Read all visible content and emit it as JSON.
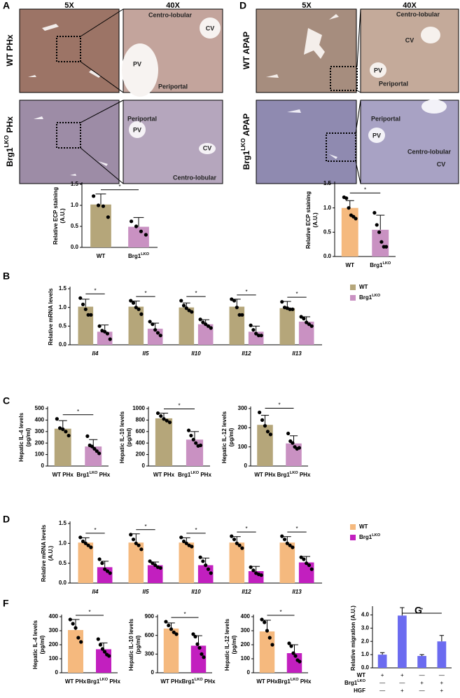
{
  "panel_labels": [
    "A",
    "D",
    "B",
    "C",
    "D",
    "F",
    "G"
  ],
  "images": {
    "A": {
      "columns": [
        "5X",
        "40X"
      ],
      "rows": [
        "WT PHx",
        "Brg1LKO PHx"
      ],
      "annotations": [
        [
          "Centro-lobular",
          "CV",
          "PV",
          "Periportal"
        ],
        [
          "Periportal",
          "PV",
          "CV",
          "Centro-lobular"
        ]
      ]
    },
    "D": {
      "columns": [
        "5X",
        "40X"
      ],
      "rows": [
        "WT APAP",
        "Brg1LKO APAP"
      ],
      "annotations": [
        [
          "Centro-lobular",
          "CV",
          "PV",
          "Periportal"
        ],
        [
          "Periportal",
          "PV",
          "Centro-lobular",
          "CV"
        ]
      ]
    }
  },
  "chart_data": [
    {
      "type": "bar",
      "y_label": [
        "Relative ECP staining",
        "(A.U.)"
      ],
      "categories": [
        "WT",
        "Brg1LKO"
      ],
      "values": [
        1.02,
        0.49
      ],
      "errors": [
        0.25,
        0.22
      ],
      "points": [
        [
          1.22,
          1.0,
          0.98,
          0.72
        ],
        [
          0.62,
          0.5,
          0.38,
          0.3
        ]
      ],
      "colors": [
        "#b5a67a",
        "#c991c2"
      ],
      "ylim": [
        0,
        1.5
      ],
      "yticks": [
        {
          "value": 0,
          "label": "0.0"
        },
        {
          "value": 0.5,
          "label": "0.5"
        },
        {
          "value": 1,
          "label": "1.0"
        },
        {
          "value": 1.5,
          "label": "1.5"
        }
      ],
      "significance": "*"
    },
    {
      "type": "bar",
      "y_label": [
        "Relative ECP staining",
        "(A.U.)"
      ],
      "categories": [
        "WT",
        "Brg1LKO"
      ],
      "values": [
        1.0,
        0.55
      ],
      "errors": [
        0.15,
        0.3
      ],
      "points": [
        [
          1.22,
          1.2,
          1.0,
          0.85,
          0.82,
          0.78
        ],
        [
          0.9,
          0.65,
          0.5,
          0.3,
          0.2,
          0.2
        ]
      ],
      "colors": [
        "#f5b97e",
        "#c991c2"
      ],
      "ylim": [
        0,
        1.5
      ],
      "yticks": [
        {
          "value": 0,
          "label": "0.0"
        },
        {
          "value": 0.5,
          "label": "0.5"
        },
        {
          "value": 1,
          "label": "1.0"
        },
        {
          "value": 1.5,
          "label": "1.5"
        }
      ],
      "significance": "*"
    },
    {
      "type": "grouped_bar",
      "y_label": [
        "Relative mRNA levels"
      ],
      "categories": [
        "Il4",
        "Il5",
        "Il10",
        "Il12",
        "Il13"
      ],
      "italic_categories": true,
      "series": [
        {
          "name": "WT",
          "color": "#b5a67a",
          "values": [
            1.02,
            1.02,
            1.0,
            1.02,
            0.98
          ],
          "errors": [
            0.2,
            0.15,
            0.12,
            0.2,
            0.18
          ],
          "points": [
            [
              1.25,
              1.08,
              0.95,
              0.8,
              0.8
            ],
            [
              1.18,
              1.12,
              1.0,
              0.95,
              0.82
            ],
            [
              1.18,
              1.05,
              0.98,
              0.92,
              0.88
            ],
            [
              1.22,
              1.18,
              1.0,
              0.8,
              0.8
            ],
            [
              1.15,
              1.0,
              0.98,
              0.95,
              0.95
            ]
          ]
        },
        {
          "name": "Brg1LKO",
          "color": "#c991c2",
          "values": [
            0.35,
            0.43,
            0.55,
            0.35,
            0.62
          ],
          "errors": [
            0.18,
            0.15,
            0.12,
            0.15,
            0.13
          ],
          "points": [
            [
              0.5,
              0.38,
              0.35,
              0.3,
              0.15
            ],
            [
              0.62,
              0.55,
              0.4,
              0.32,
              0.25
            ],
            [
              0.68,
              0.6,
              0.55,
              0.5,
              0.45
            ],
            [
              0.52,
              0.4,
              0.3,
              0.25,
              0.25
            ],
            [
              0.75,
              0.7,
              0.6,
              0.55,
              0.5
            ]
          ]
        }
      ],
      "ylim": [
        0,
        1.5
      ],
      "yticks": [
        {
          "value": 0,
          "label": "0.0"
        },
        {
          "value": 0.5,
          "label": "0.5"
        },
        {
          "value": 1,
          "label": "1.0"
        },
        {
          "value": 1.5,
          "label": "1.5"
        }
      ],
      "significance": "*",
      "legend": "right"
    },
    {
      "type": "bar",
      "y_label": [
        "Hepatic IL-4 levels",
        "(pg/ml)"
      ],
      "categories": [
        "WT PHx",
        "Brg1LKO PHx"
      ],
      "values": [
        325,
        170
      ],
      "errors": [
        70,
        60
      ],
      "points": [
        [
          410,
          330,
          320,
          300,
          265
        ],
        [
          260,
          180,
          170,
          150,
          130,
          110
        ]
      ],
      "colors": [
        "#b5a67a",
        "#c991c2"
      ],
      "ylim": [
        0,
        500
      ],
      "yticks": [
        0,
        100,
        200,
        300,
        400,
        500
      ],
      "significance": "*"
    },
    {
      "type": "bar",
      "y_label": [
        "Hepatic IL-10 levels",
        "(pg/ml)"
      ],
      "categories": [
        "WT PHx",
        "Brg1LKO PHx"
      ],
      "values": [
        830,
        460
      ],
      "errors": [
        90,
        140
      ],
      "points": [
        [
          920,
          870,
          820,
          790,
          760
        ],
        [
          620,
          530,
          460,
          400,
          350,
          360
        ]
      ],
      "colors": [
        "#b5a67a",
        "#c991c2"
      ],
      "ylim": [
        0,
        1000
      ],
      "yticks": [
        0,
        200,
        400,
        600,
        800,
        1000
      ],
      "significance": "*"
    },
    {
      "type": "bar",
      "y_label": [
        "Hepatic IL-12 levels",
        "(pg/ml)"
      ],
      "categories": [
        "WT PHx",
        "Brg1LKO PHx"
      ],
      "values": [
        215,
        118
      ],
      "errors": [
        50,
        40
      ],
      "points": [
        [
          280,
          240,
          210,
          180,
          165
        ],
        [
          170,
          130,
          120,
          100,
          90,
          95
        ]
      ],
      "colors": [
        "#b5a67a",
        "#c991c2"
      ],
      "ylim": [
        0,
        300
      ],
      "yticks": [
        0,
        100,
        200,
        300
      ],
      "significance": "*"
    },
    {
      "type": "grouped_bar",
      "y_label": [
        "Relative mRNA levels",
        "(A.U.)"
      ],
      "categories": [
        "Il4",
        "Il5",
        "Il10",
        "Il12",
        "Il13"
      ],
      "italic_categories": true,
      "series": [
        {
          "name": "WT",
          "color": "#f5b97e",
          "values": [
            1.02,
            1.02,
            1.02,
            1.02,
            1.02
          ],
          "errors": [
            0.12,
            0.22,
            0.12,
            0.15,
            0.15
          ],
          "points": [
            [
              1.15,
              1.05,
              1.0,
              0.95,
              0.9
            ],
            [
              1.22,
              1.1,
              1.0,
              0.95,
              0.85
            ],
            [
              1.15,
              1.05,
              1.0,
              0.95,
              0.92
            ],
            [
              1.18,
              1.1,
              1.0,
              0.95,
              0.88
            ],
            [
              1.18,
              1.1,
              1.0,
              0.95,
              0.9
            ]
          ]
        },
        {
          "name": "Brg1LKO",
          "color": "#c21fbf",
          "values": [
            0.4,
            0.45,
            0.45,
            0.3,
            0.52
          ],
          "errors": [
            0.15,
            0.08,
            0.18,
            0.12,
            0.15
          ],
          "points": [
            [
              0.6,
              0.5,
              0.35,
              0.3,
              0.25
            ],
            [
              0.55,
              0.5,
              0.45,
              0.4,
              0.38
            ],
            [
              0.65,
              0.55,
              0.45,
              0.35,
              0.25
            ],
            [
              0.4,
              0.32,
              0.25,
              0.22,
              0.2
            ],
            [
              0.65,
              0.6,
              0.5,
              0.45,
              0.35
            ]
          ]
        }
      ],
      "ylim": [
        0,
        1.5
      ],
      "yticks": [
        {
          "value": 0,
          "label": "0.0"
        },
        {
          "value": 0.5,
          "label": "0.5"
        },
        {
          "value": 1,
          "label": "1.0"
        },
        {
          "value": 1.5,
          "label": "1.5"
        }
      ],
      "significance": "*",
      "legend": "right"
    },
    {
      "type": "bar",
      "y_label": [
        "Hepatic IL-4 levels",
        "(pg/ml)"
      ],
      "categories": [
        "WT PHx",
        "Brg1LKO PHx"
      ],
      "values": [
        305,
        168
      ],
      "errors": [
        75,
        45
      ],
      "points": [
        [
          380,
          350,
          320,
          250,
          220
        ],
        [
          240,
          200,
          170,
          150,
          130,
          120
        ]
      ],
      "colors": [
        "#f5b97e",
        "#c21fbf"
      ],
      "ylim": [
        0,
        400
      ],
      "yticks": [
        0,
        100,
        200,
        300,
        400
      ],
      "significance": "*"
    },
    {
      "type": "bar",
      "y_label": [
        "Hepatic IL-10 levels",
        "(pg/ml)"
      ],
      "categories": [
        "WT PHx",
        "Brg1LKO PHx"
      ],
      "values": [
        710,
        435
      ],
      "errors": [
        90,
        160
      ],
      "points": [
        [
          820,
          760,
          700,
          650,
          620
        ],
        [
          620,
          580,
          460,
          400,
          300,
          250
        ]
      ],
      "colors": [
        "#f5b97e",
        "#c21fbf"
      ],
      "ylim": [
        0,
        900
      ],
      "yticks": [
        0,
        300,
        600,
        900
      ],
      "significance": "*"
    },
    {
      "type": "bar",
      "y_label": [
        "Hepatic IL-12 levels",
        "(pg/ml)"
      ],
      "categories": [
        "WT PHx",
        "Brg1LKO PHx"
      ],
      "values": [
        295,
        140
      ],
      "errors": [
        80,
        60
      ],
      "points": [
        [
          380,
          360,
          300,
          250,
          200
        ],
        [
          210,
          190,
          140,
          120,
          90,
          80
        ]
      ],
      "colors": [
        "#f5b97e",
        "#c21fbf"
      ],
      "ylim": [
        0,
        400
      ],
      "yticks": [
        0,
        100,
        200,
        300,
        400
      ],
      "significance": "*"
    },
    {
      "type": "migration_bar",
      "y_label": [
        "Relative migration (A.U.)"
      ],
      "values": [
        1.0,
        3.95,
        0.9,
        2.0
      ],
      "errors": [
        0.15,
        0.6,
        0.1,
        0.45
      ],
      "color": "#6b6bf0",
      "ylim": [
        0,
        4.5
      ],
      "yticks": [
        {
          "value": 0,
          "label": "0.0"
        },
        {
          "value": 1,
          "label": "1.0"
        },
        {
          "value": 2,
          "label": "2.0"
        },
        {
          "value": 3,
          "label": "3.0"
        },
        {
          "value": 4,
          "label": "4.0"
        }
      ],
      "significance": "*",
      "conditions": [
        {
          "label": "WT",
          "signs": [
            "+",
            "+",
            "—",
            "—"
          ]
        },
        {
          "label": "Brg1LKO",
          "signs": [
            "—",
            "—",
            "+",
            "+"
          ]
        },
        {
          "label": "HGF",
          "signs": [
            "—",
            "+",
            "—",
            "+"
          ]
        }
      ]
    }
  ]
}
